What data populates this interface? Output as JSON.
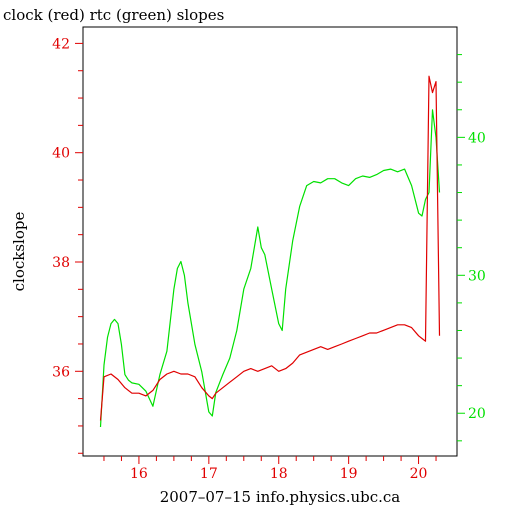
{
  "chart_data": {
    "type": "line",
    "title": "clock (red) rtc (green) slopes",
    "xlabel": "2007–07–15 info.physics.ubc.ca",
    "ylabel": "clockslope",
    "xlim": [
      15.2,
      20.55
    ],
    "x_ticks": [
      16,
      17,
      18,
      19,
      20
    ],
    "y_left": {
      "lim": [
        34.45,
        42.3
      ],
      "ticks": [
        36,
        38,
        40,
        42
      ],
      "color": "#e00000"
    },
    "y_right": {
      "lim": [
        16.9,
        48.0
      ],
      "ticks": [
        20,
        30,
        40
      ],
      "color": "#00e000"
    },
    "grid": false,
    "series": [
      {
        "name": "clock",
        "axis": "left",
        "color": "#e00000",
        "x": [
          15.45,
          15.5,
          15.6,
          15.7,
          15.8,
          15.9,
          16.0,
          16.1,
          16.2,
          16.3,
          16.4,
          16.5,
          16.6,
          16.7,
          16.8,
          16.9,
          17.0,
          17.05,
          17.1,
          17.2,
          17.3,
          17.4,
          17.5,
          17.6,
          17.7,
          17.8,
          17.9,
          18.0,
          18.1,
          18.2,
          18.3,
          18.4,
          18.5,
          18.6,
          18.7,
          18.8,
          18.9,
          19.0,
          19.1,
          19.2,
          19.3,
          19.4,
          19.5,
          19.6,
          19.7,
          19.8,
          19.9,
          20.0,
          20.05,
          20.1,
          20.15,
          20.2,
          20.25,
          20.3
        ],
        "y": [
          35.1,
          35.9,
          35.95,
          35.85,
          35.7,
          35.6,
          35.6,
          35.55,
          35.65,
          35.85,
          35.95,
          36.0,
          35.95,
          35.95,
          35.9,
          35.7,
          35.55,
          35.5,
          35.6,
          35.7,
          35.8,
          35.9,
          36.0,
          36.05,
          36.0,
          36.05,
          36.1,
          36.0,
          36.05,
          36.15,
          36.3,
          36.35,
          36.4,
          36.45,
          36.4,
          36.45,
          36.5,
          36.55,
          36.6,
          36.65,
          36.7,
          36.7,
          36.75,
          36.8,
          36.85,
          36.85,
          36.8,
          36.65,
          36.6,
          36.55,
          41.4,
          41.1,
          41.3,
          36.65
        ]
      },
      {
        "name": "rtc",
        "axis": "right",
        "color": "#00e000",
        "x": [
          15.45,
          15.5,
          15.55,
          15.6,
          15.65,
          15.7,
          15.75,
          15.8,
          15.85,
          15.9,
          16.0,
          16.1,
          16.2,
          16.3,
          16.4,
          16.5,
          16.55,
          16.6,
          16.65,
          16.7,
          16.8,
          16.9,
          17.0,
          17.05,
          17.1,
          17.2,
          17.3,
          17.4,
          17.5,
          17.6,
          17.7,
          17.75,
          17.8,
          17.9,
          18.0,
          18.05,
          18.1,
          18.2,
          18.3,
          18.4,
          18.5,
          18.6,
          18.7,
          18.8,
          18.9,
          19.0,
          19.1,
          19.2,
          19.3,
          19.4,
          19.5,
          19.6,
          19.7,
          19.8,
          19.9,
          20.0,
          20.05,
          20.1,
          20.15,
          20.2,
          20.25,
          20.3
        ],
        "y": [
          19.0,
          23.5,
          25.5,
          26.5,
          26.8,
          26.5,
          25.0,
          22.8,
          22.4,
          22.2,
          22.1,
          21.6,
          20.5,
          22.8,
          24.5,
          29.0,
          30.5,
          31.0,
          30.0,
          28.0,
          25.0,
          23.0,
          20.1,
          19.8,
          21.5,
          22.8,
          24.0,
          26.0,
          29.0,
          30.5,
          33.5,
          32.0,
          31.5,
          29.0,
          26.5,
          26.0,
          29.0,
          32.5,
          35.0,
          36.5,
          36.8,
          36.7,
          37.0,
          37.0,
          36.7,
          36.5,
          37.0,
          37.2,
          37.1,
          37.3,
          37.6,
          37.7,
          37.5,
          37.7,
          36.5,
          34.5,
          34.3,
          35.5,
          36.0,
          42.0,
          40.0,
          36.0
        ]
      }
    ]
  }
}
